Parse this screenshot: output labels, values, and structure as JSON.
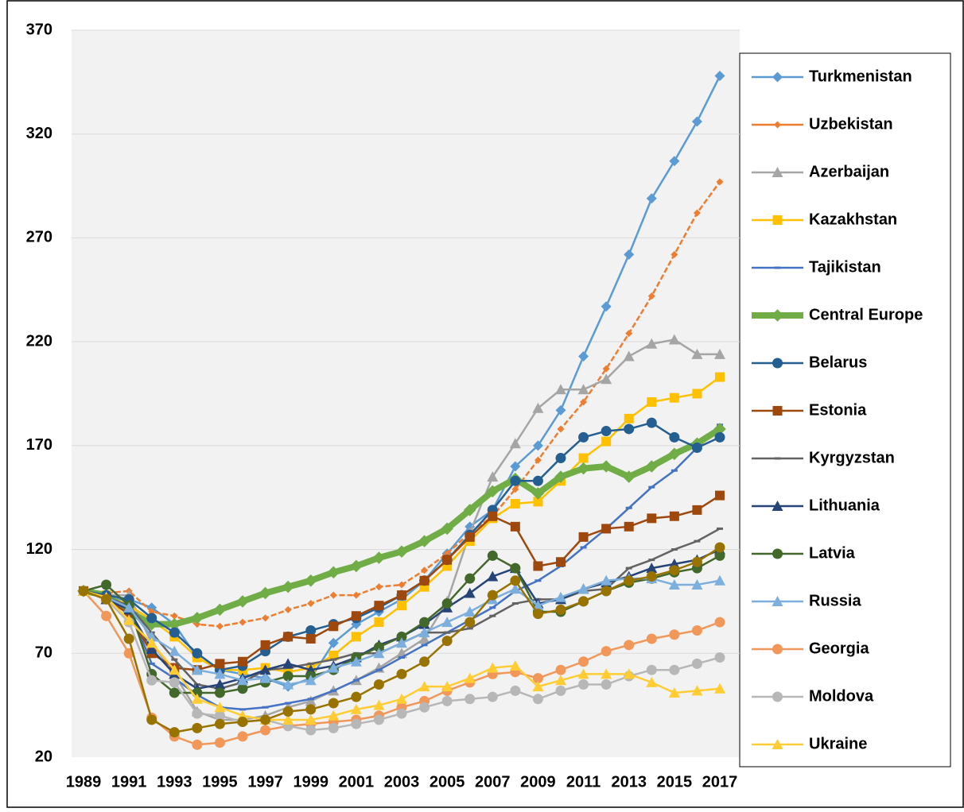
{
  "chart_data": {
    "type": "line",
    "x": [
      1989,
      1990,
      1991,
      1992,
      1993,
      1994,
      1995,
      1996,
      1997,
      1998,
      1999,
      2000,
      2001,
      2002,
      2003,
      2004,
      2005,
      2006,
      2007,
      2008,
      2009,
      2010,
      2011,
      2012,
      2013,
      2014,
      2015,
      2016,
      2017
    ],
    "xlim": [
      1989,
      2017
    ],
    "xticks": [
      1989,
      1991,
      1993,
      1995,
      1997,
      1999,
      2001,
      2003,
      2005,
      2007,
      2009,
      2011,
      2013,
      2015,
      2017
    ],
    "ylim": [
      20,
      370
    ],
    "yticks": [
      20,
      70,
      120,
      170,
      220,
      270,
      320,
      370
    ],
    "grid": true,
    "legend": "right",
    "series": [
      {
        "name": "Turkmenistan",
        "color": "#5b9bd5",
        "marker": "diamond",
        "values": [
          100,
          96,
          96,
          92,
          84,
          68,
          62,
          60,
          58,
          54,
          58,
          75,
          84,
          90,
          96,
          105,
          118,
          131,
          139,
          160,
          170,
          187,
          213,
          237,
          262,
          289,
          307,
          326,
          348
        ]
      },
      {
        "name": "Uzbekistan",
        "color": "#ed7d31",
        "marker": "small-diamond",
        "values": [
          100,
          99,
          100,
          90,
          88,
          84,
          83,
          85,
          87,
          91,
          94,
          98,
          98,
          102,
          103,
          110,
          118,
          128,
          136,
          149,
          163,
          178,
          191,
          207,
          224,
          242,
          262,
          282,
          297
        ]
      },
      {
        "name": "Azerbaijan",
        "color": "#a5a5a5",
        "marker": "triangle",
        "values": [
          100,
          98,
          98,
          75,
          60,
          42,
          38,
          38,
          40,
          44,
          47,
          52,
          57,
          63,
          70,
          77,
          95,
          128,
          155,
          171,
          188,
          197,
          197,
          202,
          213,
          219,
          221,
          214,
          214
        ]
      },
      {
        "name": "Kazakhstan",
        "color": "#ffc000",
        "marker": "square",
        "values": [
          100,
          98,
          93,
          86,
          78,
          68,
          62,
          62,
          63,
          61,
          63,
          69,
          78,
          85,
          93,
          102,
          112,
          124,
          135,
          142,
          143,
          153,
          164,
          172,
          183,
          191,
          193,
          195,
          203
        ]
      },
      {
        "name": "Tajikistan",
        "color": "#4472c4",
        "marker": "dash",
        "values": [
          100,
          98,
          92,
          65,
          58,
          50,
          44,
          43,
          44,
          46,
          48,
          52,
          57,
          62,
          68,
          74,
          80,
          86,
          92,
          100,
          105,
          112,
          121,
          130,
          140,
          150,
          158,
          169,
          180
        ]
      },
      {
        "name": "Central Europe",
        "color": "#70ad47",
        "marker": "diamond",
        "values": [
          100,
          98,
          90,
          84,
          84,
          87,
          91,
          95,
          99,
          102,
          105,
          109,
          112,
          116,
          119,
          124,
          130,
          139,
          148,
          154,
          147,
          155,
          159,
          160,
          155,
          160,
          166,
          171,
          178
        ]
      },
      {
        "name": "Belarus",
        "color": "#255e91",
        "marker": "circle",
        "values": [
          100,
          98,
          96,
          87,
          80,
          70,
          62,
          64,
          71,
          78,
          81,
          84,
          87,
          92,
          98,
          105,
          115,
          127,
          139,
          153,
          153,
          164,
          174,
          177,
          178,
          181,
          174,
          169,
          174
        ]
      },
      {
        "name": "Estonia",
        "color": "#9e480e",
        "marker": "square",
        "values": [
          100,
          96,
          89,
          70,
          63,
          62,
          65,
          66,
          74,
          78,
          77,
          83,
          88,
          93,
          98,
          105,
          115,
          126,
          136,
          131,
          112,
          114,
          126,
          130,
          131,
          135,
          136,
          139,
          146
        ]
      },
      {
        "name": "Kyrgyzstan",
        "color": "#636363",
        "marker": "dash",
        "values": [
          100,
          97,
          93,
          80,
          67,
          55,
          53,
          56,
          62,
          63,
          65,
          67,
          70,
          70,
          75,
          80,
          80,
          82,
          88,
          94,
          96,
          96,
          100,
          101,
          111,
          115,
          120,
          124,
          130
        ]
      },
      {
        "name": "Lithuania",
        "color": "#264478",
        "marker": "triangle",
        "values": [
          100,
          96,
          91,
          72,
          60,
          53,
          55,
          58,
          62,
          65,
          62,
          64,
          68,
          74,
          78,
          84,
          92,
          99,
          107,
          111,
          94,
          96,
          101,
          104,
          107,
          111,
          113,
          115,
          120
        ]
      },
      {
        "name": "Latvia",
        "color": "#43682b",
        "marker": "circle",
        "values": [
          100,
          103,
          93,
          60,
          51,
          51,
          51,
          53,
          56,
          59,
          59,
          62,
          68,
          73,
          78,
          85,
          94,
          106,
          117,
          111,
          90,
          90,
          95,
          100,
          104,
          106,
          109,
          111,
          117
        ]
      },
      {
        "name": "Russia",
        "color": "#7cafdd",
        "marker": "triangle",
        "values": [
          100,
          97,
          92,
          78,
          71,
          62,
          60,
          57,
          58,
          55,
          57,
          63,
          66,
          70,
          75,
          80,
          85,
          90,
          96,
          101,
          93,
          97,
          101,
          105,
          106,
          106,
          103,
          103,
          105
        ]
      },
      {
        "name": "Georgia",
        "color": "#f1975a",
        "marker": "circle",
        "values": [
          100,
          88,
          70,
          39,
          30,
          26,
          27,
          30,
          33,
          35,
          36,
          37,
          38,
          40,
          44,
          47,
          52,
          56,
          60,
          61,
          58,
          62,
          66,
          71,
          74,
          77,
          79,
          81,
          85
        ]
      },
      {
        "name": "Moldova",
        "color": "#b7b7b7",
        "marker": "circle",
        "values": [
          100,
          96,
          85,
          57,
          56,
          41,
          40,
          37,
          38,
          35,
          33,
          34,
          36,
          38,
          41,
          44,
          47,
          48,
          49,
          52,
          48,
          52,
          55,
          55,
          59,
          62,
          62,
          65,
          68
        ]
      },
      {
        "name": "Ukraine",
        "color": "#ffcd33",
        "marker": "triangle",
        "values": [
          100,
          97,
          86,
          75,
          62,
          48,
          44,
          40,
          38,
          38,
          38,
          40,
          43,
          45,
          48,
          54,
          54,
          58,
          63,
          64,
          54,
          57,
          60,
          60,
          60,
          56,
          51,
          52,
          53
        ]
      },
      {
        "color": "#997300",
        "marker": "circle",
        "values": [
          100,
          96,
          77,
          38,
          32,
          34,
          36,
          37,
          38,
          42,
          43,
          46,
          49,
          55,
          60,
          66,
          76,
          85,
          98,
          105,
          89,
          91,
          95,
          100,
          105,
          107,
          110,
          114,
          121
        ]
      }
    ]
  }
}
